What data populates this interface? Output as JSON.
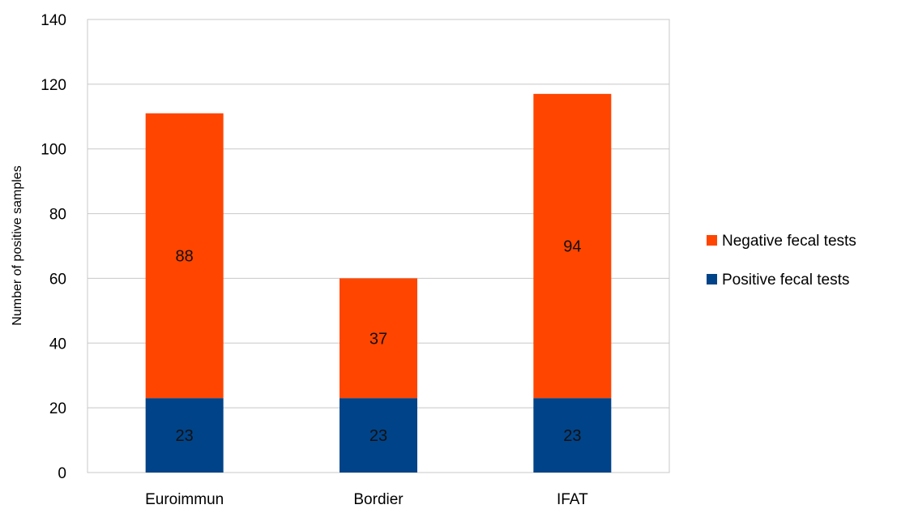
{
  "chart_data": {
    "type": "bar",
    "stacked": true,
    "categories": [
      "Euroimmun",
      "Bordier",
      "IFAT"
    ],
    "series": [
      {
        "name": "Positive fecal tests",
        "values": [
          23,
          23,
          23
        ],
        "color": "#004388"
      },
      {
        "name": "Negative fecal tests",
        "values": [
          88,
          37,
          94
        ],
        "color": "#FF4500"
      }
    ],
    "title": "",
    "xlabel": "",
    "ylabel": "Number of positive samples",
    "ylim": [
      0,
      140
    ],
    "yticks": [
      0,
      20,
      40,
      60,
      80,
      100,
      120,
      140
    ],
    "grid": true,
    "legend_position": "right",
    "legend_order": [
      "Negative fecal tests",
      "Positive fecal tests"
    ]
  }
}
